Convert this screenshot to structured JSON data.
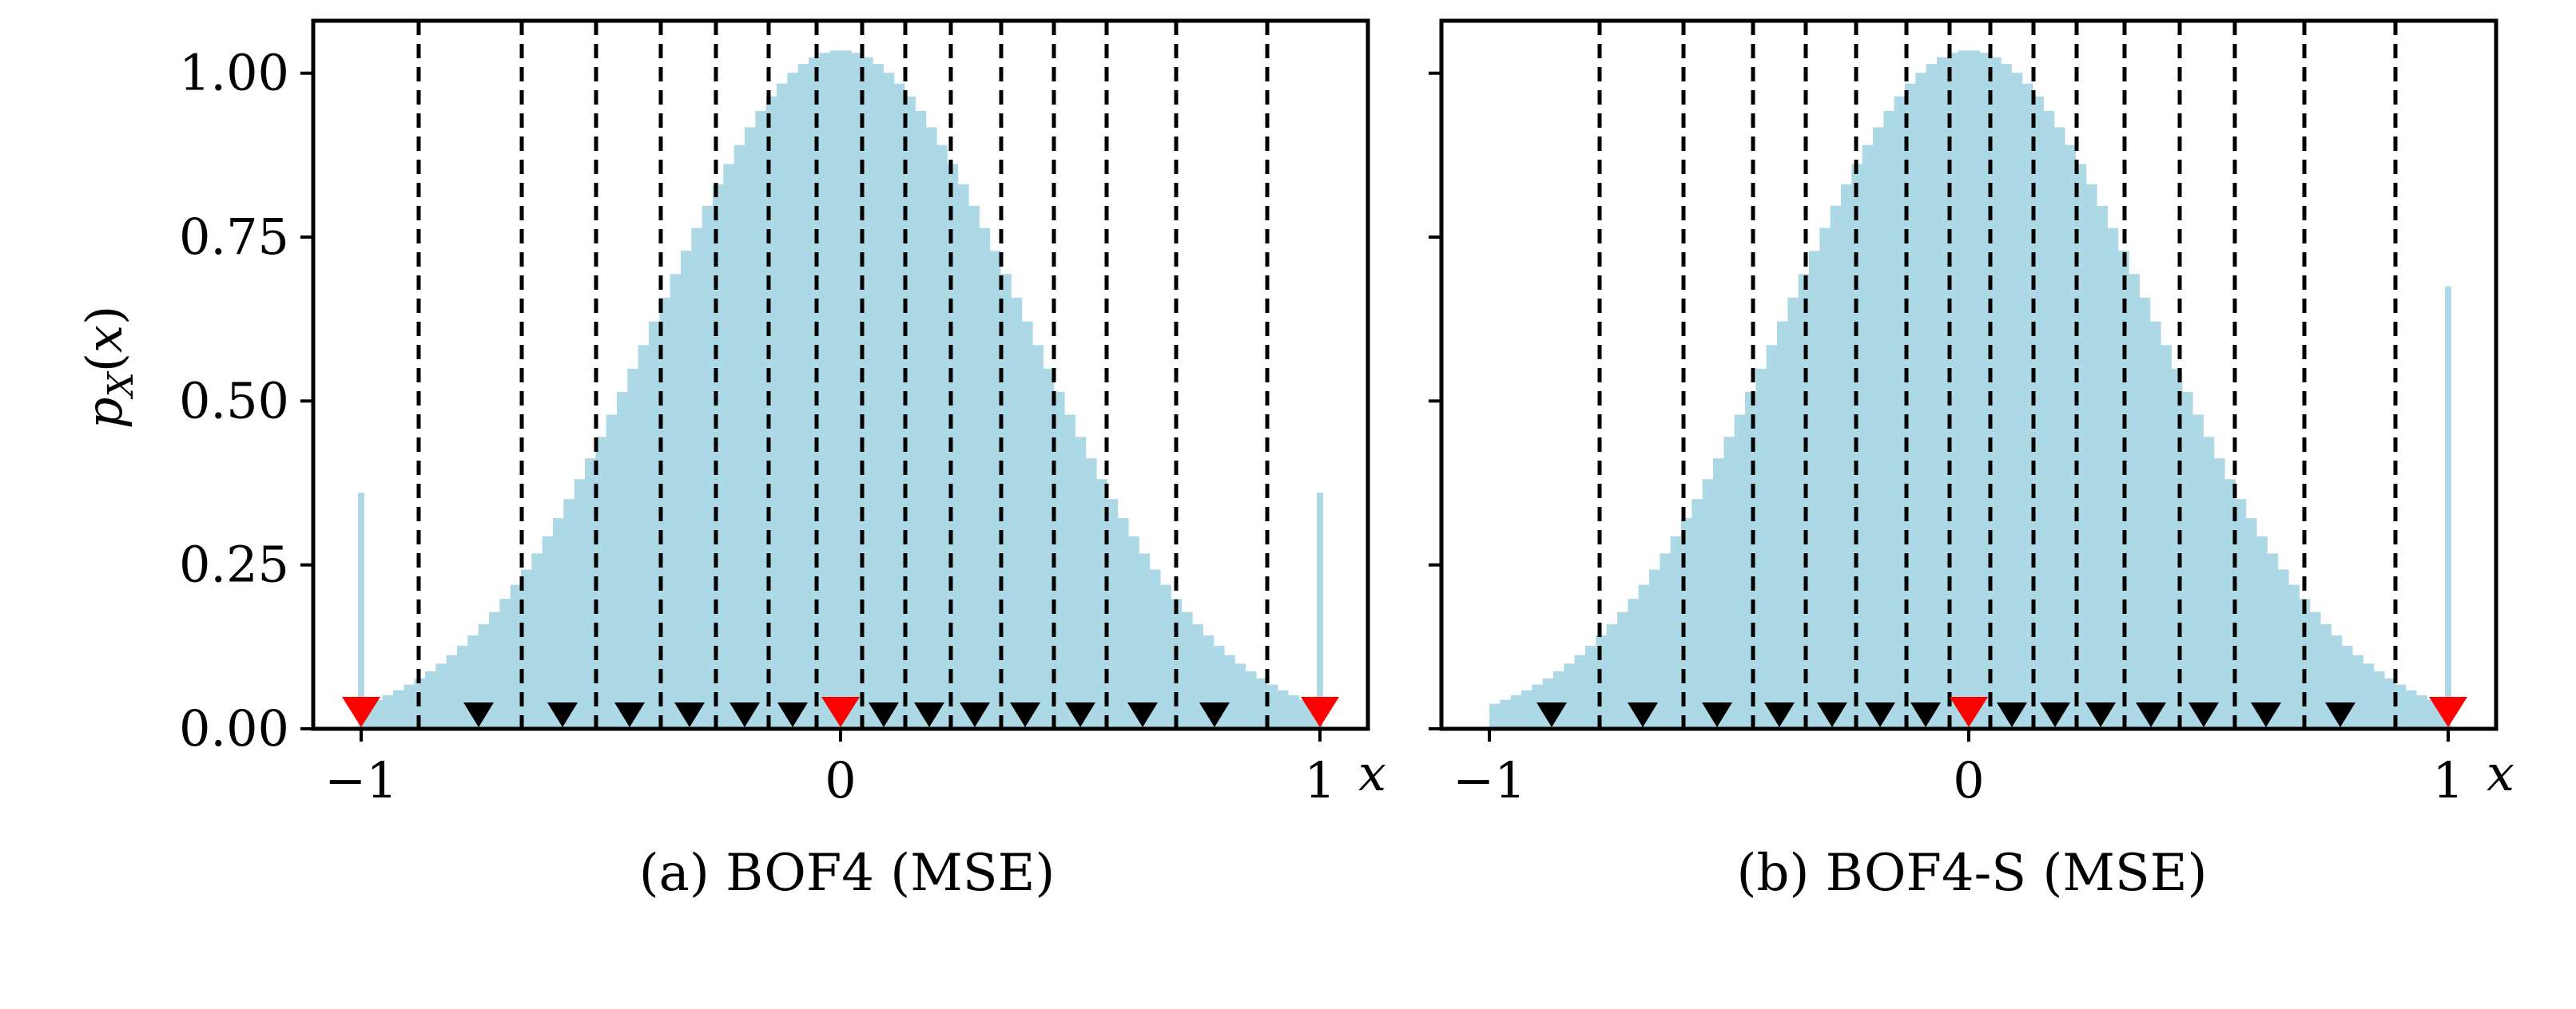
{
  "colors": {
    "histogram": "#add8e6",
    "quant_level_inner": "#000000",
    "quant_level_special": "#ff0000",
    "boundary": "#000000",
    "axes": "#000000"
  },
  "chart_data": [
    {
      "type": "bar",
      "panel": "a",
      "caption": "(a) BOF4 (MSE)",
      "title": "",
      "xlabel": "x",
      "ylabel": "p_X(x)",
      "xlim": [
        -1.1,
        1.1
      ],
      "ylim": [
        0,
        1.08
      ],
      "xticks": [
        -1,
        0,
        1
      ],
      "xtick_labels": [
        "−1",
        "0",
        "1"
      ],
      "yticks": [
        0,
        0.25,
        0.5,
        0.75,
        1.0
      ],
      "ytick_labels": [
        "0.00",
        "0.25",
        "0.50",
        "0.75",
        "1.00"
      ],
      "show_ytick_labels": true,
      "grid": false,
      "legend": "none",
      "histogram": {
        "sigma": 0.385,
        "peak": 1.035,
        "bin_count": 90,
        "range": [
          -1,
          1
        ],
        "clip_spikes": [
          {
            "x": -1,
            "y": 0.36
          },
          {
            "x": 1,
            "y": 0.36
          }
        ]
      },
      "boundaries": [
        -0.88,
        -0.665,
        -0.51,
        -0.375,
        -0.26,
        -0.15,
        -0.05,
        0.045,
        0.135,
        0.23,
        0.335,
        0.445,
        0.555,
        0.7,
        0.89
      ],
      "quantization_levels": [
        -1,
        -0.755,
        -0.58,
        -0.44,
        -0.315,
        -0.2,
        -0.1,
        0,
        0.09,
        0.185,
        0.28,
        0.385,
        0.5,
        0.63,
        0.78,
        1
      ],
      "special_levels": [
        -1,
        0,
        1
      ]
    },
    {
      "type": "bar",
      "panel": "b",
      "caption": "(b) BOF4-S (MSE)",
      "title": "",
      "xlabel": "x",
      "ylabel": "",
      "xlim": [
        -1.1,
        1.1
      ],
      "ylim": [
        0,
        1.08
      ],
      "xticks": [
        -1,
        0,
        1
      ],
      "xtick_labels": [
        "−1",
        "0",
        "1"
      ],
      "yticks": [
        0,
        0.25,
        0.5,
        0.75,
        1.0
      ],
      "ytick_labels": [
        "",
        "",
        "",
        "",
        ""
      ],
      "show_ytick_labels": false,
      "grid": false,
      "legend": "none",
      "histogram": {
        "sigma": 0.385,
        "peak": 1.035,
        "bin_count": 90,
        "range": [
          -1,
          1
        ],
        "clip_spikes": [
          {
            "x": 1,
            "y": 0.675
          }
        ]
      },
      "boundaries": [
        -0.77,
        -0.595,
        -0.45,
        -0.34,
        -0.235,
        -0.13,
        -0.04,
        0.045,
        0.135,
        0.225,
        0.325,
        0.44,
        0.555,
        0.7,
        0.89
      ],
      "quantization_levels": [
        -0.87,
        -0.68,
        -0.525,
        -0.395,
        -0.285,
        -0.185,
        -0.09,
        0,
        0.09,
        0.18,
        0.275,
        0.38,
        0.49,
        0.62,
        0.775,
        1
      ],
      "special_levels": [
        0,
        1
      ]
    }
  ]
}
